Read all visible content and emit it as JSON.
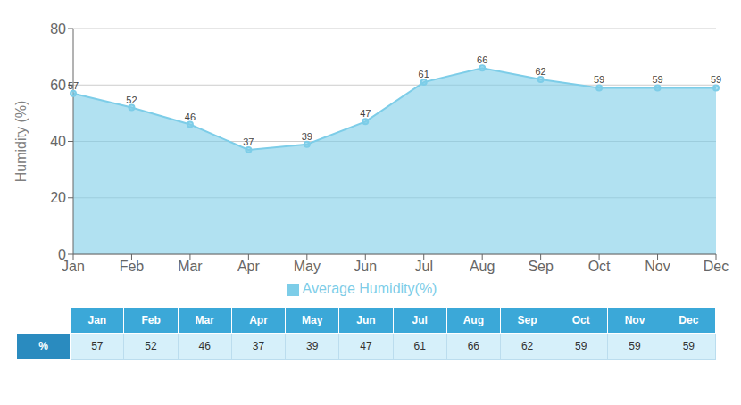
{
  "chart_data": {
    "type": "area",
    "ylabel": "Humidity (%)",
    "categories": [
      "Jan",
      "Feb",
      "Mar",
      "Apr",
      "May",
      "Jun",
      "Jul",
      "Aug",
      "Sep",
      "Oct",
      "Nov",
      "Dec"
    ],
    "series": [
      {
        "name": "Average Humidity(%)",
        "color": "#7DCDE8",
        "values": [
          57,
          52,
          46,
          37,
          39,
          47,
          61,
          66,
          62,
          59,
          59,
          59
        ]
      }
    ],
    "ylim": [
      0,
      80
    ],
    "yticks": [
      0,
      20,
      40,
      60,
      80
    ],
    "grid": true,
    "data_labels": true,
    "marker": "circle",
    "table_label": "%"
  }
}
